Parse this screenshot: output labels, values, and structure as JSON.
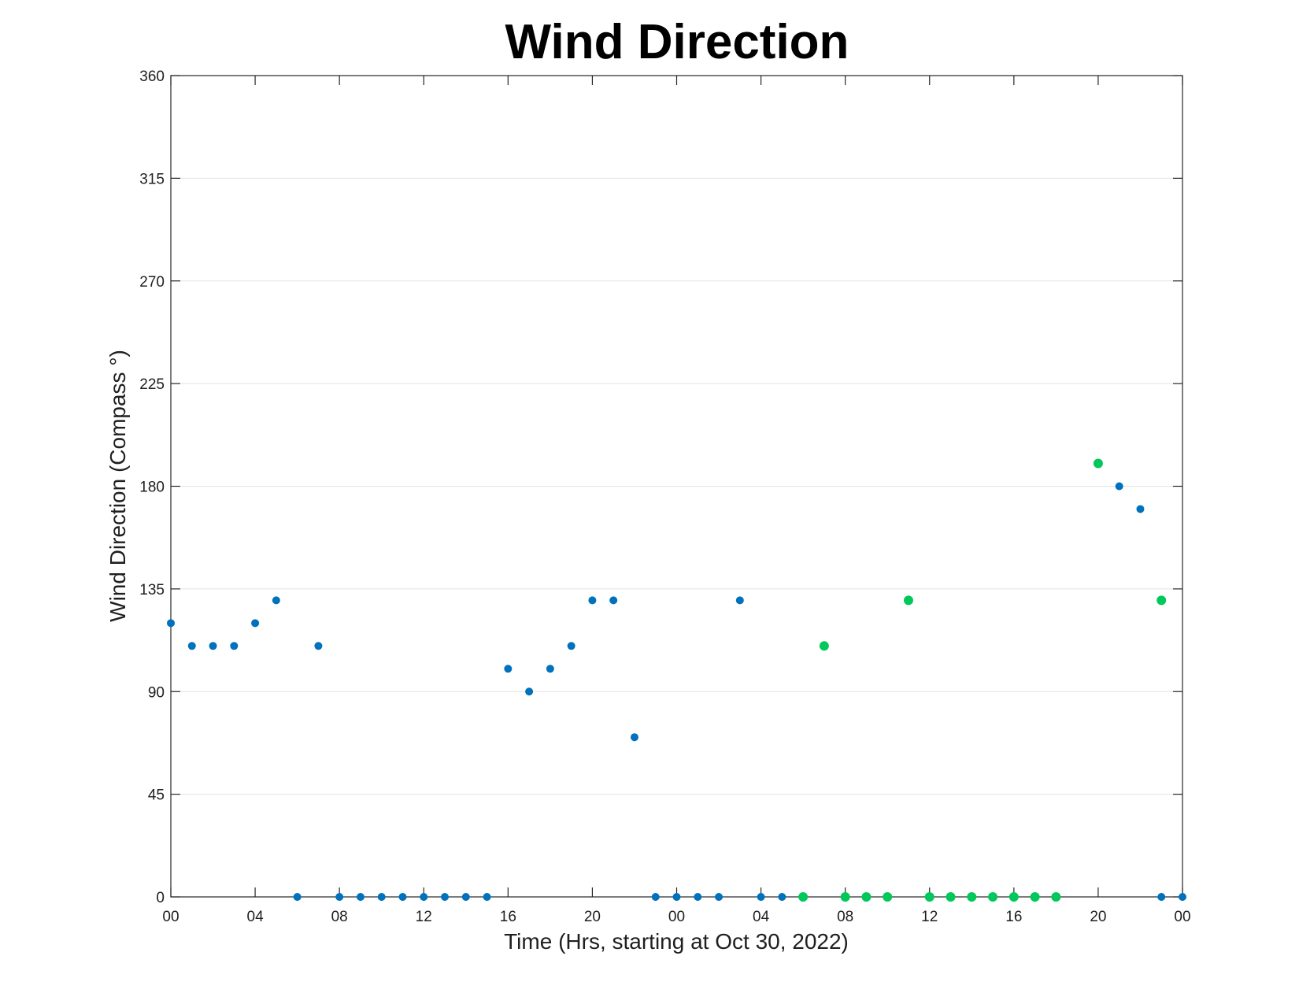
{
  "chart_data": {
    "type": "scatter",
    "title": "Wind Direction",
    "xlabel": "Time (Hrs, starting at Oct 30, 2022)",
    "ylabel": "Wind Direction (Compass °)",
    "xlim": [
      0,
      48
    ],
    "ylim": [
      0,
      360
    ],
    "xticks": [
      0,
      4,
      8,
      12,
      16,
      20,
      24,
      28,
      32,
      36,
      40,
      44,
      48
    ],
    "xtick_labels": [
      "00",
      "04",
      "08",
      "12",
      "16",
      "20",
      "00",
      "04",
      "08",
      "12",
      "16",
      "20",
      "00"
    ],
    "yticks": [
      0,
      45,
      90,
      135,
      180,
      225,
      270,
      315,
      360
    ],
    "ytick_labels": [
      "0",
      "45",
      "90",
      "135",
      "180",
      "225",
      "270",
      "315",
      "360"
    ],
    "grid": "y",
    "series": [
      {
        "color": "#0072BD",
        "x": [
          0,
          1,
          2,
          3,
          4,
          5,
          6,
          7,
          8,
          9,
          10,
          11,
          12,
          13,
          14,
          15,
          16,
          17,
          18,
          19,
          20,
          21,
          22,
          23,
          24,
          25,
          26,
          27,
          28,
          29,
          45,
          46,
          47,
          48
        ],
        "y": [
          120,
          110,
          110,
          110,
          120,
          130,
          0,
          110,
          0,
          0,
          0,
          0,
          0,
          0,
          0,
          0,
          100,
          90,
          100,
          110,
          130,
          130,
          70,
          0,
          0,
          0,
          0,
          130,
          0,
          0,
          180,
          170,
          0,
          0
        ]
      },
      {
        "color": "#00C85A",
        "x": [
          30,
          31,
          32,
          33,
          34,
          35,
          36,
          37,
          38,
          39,
          40,
          41,
          42,
          44,
          47
        ],
        "y": [
          0,
          110,
          0,
          0,
          0,
          130,
          0,
          0,
          0,
          0,
          0,
          0,
          0,
          190,
          130
        ]
      }
    ]
  }
}
